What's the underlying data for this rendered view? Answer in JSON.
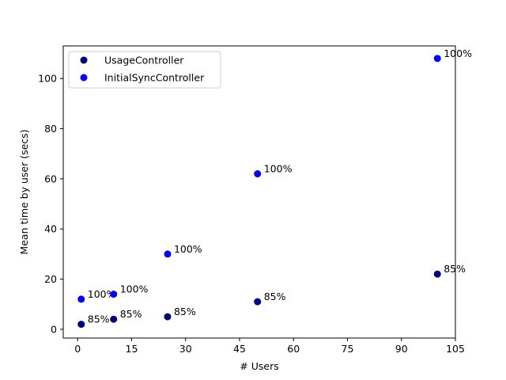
{
  "chart_data": {
    "type": "scatter",
    "xlabel": "# Users",
    "ylabel": "Mean time by user (secs)",
    "xlim": [
      -4,
      105
    ],
    "ylim": [
      -3.5,
      113
    ],
    "xticks": [
      0,
      15,
      30,
      45,
      60,
      75,
      90,
      105
    ],
    "yticks": [
      0,
      20,
      40,
      60,
      80,
      100
    ],
    "grid": false,
    "legend_position": "top-left",
    "series": [
      {
        "name": "UsageController",
        "color": "#00007f",
        "points": [
          {
            "x": 1,
            "y": 2,
            "label": "85%"
          },
          {
            "x": 10,
            "y": 4,
            "label": "85%"
          },
          {
            "x": 25,
            "y": 5,
            "label": "85%"
          },
          {
            "x": 50,
            "y": 11,
            "label": "85%"
          },
          {
            "x": 100,
            "y": 22,
            "label": "85%"
          }
        ]
      },
      {
        "name": "InitialSyncController",
        "color": "#0000ff",
        "points": [
          {
            "x": 1,
            "y": 12,
            "label": "100%"
          },
          {
            "x": 10,
            "y": 14,
            "label": "100%"
          },
          {
            "x": 25,
            "y": 30,
            "label": "100%"
          },
          {
            "x": 50,
            "y": 62,
            "label": "100%"
          },
          {
            "x": 100,
            "y": 108,
            "label": "100%"
          }
        ]
      }
    ]
  }
}
